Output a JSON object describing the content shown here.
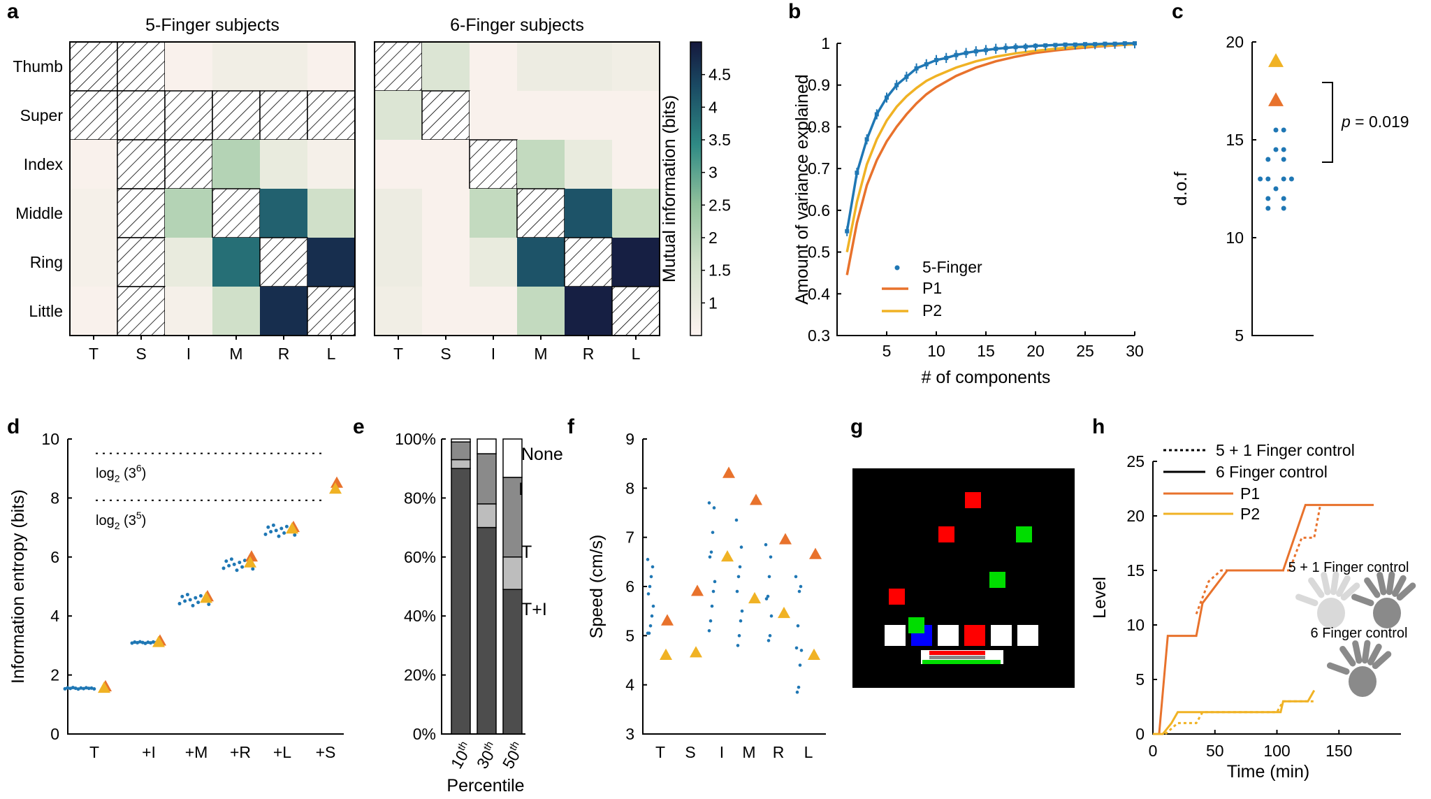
{
  "colors": {
    "blue": "#1f77b4",
    "p1": "#e8722c",
    "p2": "#f0b224",
    "heat_low": "#fcf3f0",
    "heat_mid": "#8fc09b",
    "heat_high": "#15183d",
    "g_bg": "#000000",
    "g_red": "#ff0000",
    "g_green": "#00dd00",
    "g_blue": "#0000ff",
    "g_white": "#ffffff"
  },
  "panels": {
    "a": "a",
    "b": "b",
    "c": "c",
    "d": "d",
    "e": "e",
    "f": "f",
    "g": "g",
    "h": "h"
  },
  "chart_data": [
    {
      "panel": "a",
      "type": "heatmap",
      "titles": [
        "5-Finger subjects",
        "6-Finger subjects"
      ],
      "row_labels": [
        "Thumb",
        "Super",
        "Index",
        "Middle",
        "Ring",
        "Little"
      ],
      "col_labels": [
        "T",
        "S",
        "I",
        "M",
        "R",
        "L"
      ],
      "colorbar": {
        "label": "Mutual information (bits)",
        "ticks": [
          "1",
          "1.5",
          "2",
          "2.5",
          "3",
          "3.5",
          "4",
          "4.5"
        ],
        "range": [
          0.5,
          5.0
        ]
      },
      "matrices": [
        {
          "name": "5-Finger subjects",
          "values": [
            [
              null,
              null,
              0.6,
              0.8,
              0.8,
              0.6
            ],
            [
              null,
              null,
              null,
              null,
              null,
              null
            ],
            [
              0.6,
              null,
              null,
              2.0,
              1.0,
              0.7
            ],
            [
              0.7,
              null,
              2.0,
              null,
              4.0,
              1.6
            ],
            [
              0.7,
              null,
              1.0,
              3.8,
              null,
              4.7
            ],
            [
              0.6,
              null,
              0.7,
              1.6,
              4.7,
              null
            ]
          ]
        },
        {
          "name": "6-Finger subjects",
          "values": [
            [
              null,
              1.3,
              0.6,
              0.9,
              0.9,
              0.8
            ],
            [
              1.3,
              null,
              0.6,
              0.6,
              0.6,
              0.6
            ],
            [
              0.6,
              0.6,
              null,
              1.8,
              1.0,
              0.6
            ],
            [
              0.9,
              0.6,
              1.8,
              null,
              4.2,
              1.7
            ],
            [
              0.9,
              0.6,
              1.0,
              4.2,
              null,
              4.9
            ],
            [
              0.8,
              0.6,
              0.6,
              1.8,
              4.9,
              null
            ]
          ]
        }
      ]
    },
    {
      "panel": "b",
      "type": "line",
      "xlabel": "# of components",
      "ylabel": "Amount of variance explained",
      "xlim": [
        0,
        30
      ],
      "ylim": [
        0.3,
        1.0
      ],
      "xticks": [
        "5",
        "10",
        "15",
        "20",
        "25",
        "30"
      ],
      "yticks": [
        "0.3",
        "0.4",
        "0.5",
        "0.6",
        "0.7",
        "0.8",
        "0.9",
        "1"
      ],
      "legend": [
        "5-Finger",
        "P1",
        "P2"
      ],
      "series": [
        {
          "name": "5-Finger",
          "x": [
            1,
            2,
            3,
            4,
            5,
            6,
            7,
            8,
            9,
            10,
            11,
            12,
            13,
            14,
            15,
            16,
            17,
            18,
            19,
            20,
            21,
            22,
            23,
            24,
            25,
            26,
            27,
            28,
            29,
            30
          ],
          "y": [
            0.55,
            0.69,
            0.77,
            0.83,
            0.87,
            0.9,
            0.92,
            0.94,
            0.95,
            0.96,
            0.965,
            0.972,
            0.977,
            0.981,
            0.984,
            0.987,
            0.989,
            0.991,
            0.992,
            0.994,
            0.995,
            0.996,
            0.997,
            0.997,
            0.998,
            0.998,
            0.999,
            0.999,
            1.0,
            1.0
          ]
        },
        {
          "name": "P1",
          "x": [
            1,
            2,
            3,
            4,
            5,
            6,
            7,
            8,
            9,
            10,
            12,
            14,
            16,
            18,
            20,
            22,
            24,
            26,
            28,
            30
          ],
          "y": [
            0.445,
            0.57,
            0.66,
            0.72,
            0.765,
            0.8,
            0.83,
            0.856,
            0.878,
            0.895,
            0.922,
            0.942,
            0.957,
            0.968,
            0.977,
            0.983,
            0.988,
            0.992,
            0.995,
            0.998
          ]
        },
        {
          "name": "P2",
          "x": [
            1,
            2,
            3,
            4,
            5,
            6,
            7,
            8,
            9,
            10,
            12,
            14,
            16,
            18,
            20,
            22,
            24,
            26,
            28,
            30
          ],
          "y": [
            0.5,
            0.62,
            0.71,
            0.77,
            0.815,
            0.848,
            0.873,
            0.893,
            0.91,
            0.922,
            0.942,
            0.957,
            0.968,
            0.976,
            0.982,
            0.987,
            0.991,
            0.994,
            0.996,
            0.998
          ]
        }
      ]
    },
    {
      "panel": "c",
      "type": "scatter",
      "ylabel": "d.o.f",
      "ylim": [
        5,
        20
      ],
      "yticks": [
        "5",
        "10",
        "15",
        "20"
      ],
      "annotation": "p = 0.019",
      "annotation_p": "p",
      "annotation_rest": " = 0.019",
      "five_finger": [
        {
          "x": 0.0,
          "y": 15.5
        },
        {
          "x": 0.35,
          "y": 15.5
        },
        {
          "x": 0.0,
          "y": 14.5
        },
        {
          "x": 0.35,
          "y": 14.5
        },
        {
          "x": -0.35,
          "y": 14.0
        },
        {
          "x": 0.35,
          "y": 14.0
        },
        {
          "x": -0.7,
          "y": 13.0
        },
        {
          "x": -0.35,
          "y": 13.0
        },
        {
          "x": 0.35,
          "y": 13.0
        },
        {
          "x": 0.7,
          "y": 13.0
        },
        {
          "x": 0.0,
          "y": 12.5
        },
        {
          "x": -0.35,
          "y": 12.0
        },
        {
          "x": 0.35,
          "y": 12.0
        },
        {
          "x": -0.35,
          "y": 11.5
        },
        {
          "x": 0.35,
          "y": 11.5
        }
      ],
      "six_finger": [
        {
          "name": "P1",
          "y": 17
        },
        {
          "name": "P2",
          "y": 19
        }
      ]
    },
    {
      "panel": "d",
      "type": "scatter",
      "ylabel": "Information entropy (bits)",
      "ylim": [
        0,
        10
      ],
      "yticks": [
        "0",
        "2",
        "4",
        "6",
        "8",
        "10"
      ],
      "categories": [
        "T",
        "+I",
        "+M",
        "+R",
        "+L",
        "+S"
      ],
      "reference_lines": [
        {
          "y": 9.51,
          "base": "log",
          "sub": "2",
          "arg": "(3",
          "sup": "6",
          "close": ")"
        },
        {
          "y": 7.92,
          "base": "log",
          "sub": "2",
          "arg": "(3",
          "sup": "5",
          "close": ")"
        }
      ],
      "five_finger_means": [
        1.55,
        3.1,
        4.55,
        5.75,
        6.9
      ],
      "p1": [
        1.6,
        3.15,
        4.65,
        6.0,
        7.0,
        8.5
      ],
      "p2": [
        1.55,
        3.1,
        4.6,
        5.8,
        6.95,
        8.3
      ]
    },
    {
      "panel": "e",
      "type": "bar",
      "stacked": true,
      "xlabel": "Percentile",
      "categories": [
        {
          "base": "10",
          "sup": "th"
        },
        {
          "base": "30",
          "sup": "th"
        },
        {
          "base": "50",
          "sup": "th"
        }
      ],
      "yticks": [
        "0%",
        "20%",
        "40%",
        "60%",
        "80%",
        "100%"
      ],
      "segment_labels": [
        "T+I",
        "T",
        "I",
        "None"
      ],
      "series": [
        {
          "name": "T+I",
          "color": "#4d4d4d",
          "values": [
            90,
            70,
            49
          ]
        },
        {
          "name": "T",
          "color": "#bdbdbd",
          "values": [
            3,
            8,
            11
          ]
        },
        {
          "name": "I",
          "color": "#8a8a8a",
          "values": [
            6,
            17,
            27
          ]
        },
        {
          "name": "None",
          "color": "#ffffff",
          "values": [
            1,
            5,
            13
          ]
        }
      ]
    },
    {
      "panel": "f",
      "type": "scatter",
      "ylabel": "Speed (cm/s)",
      "ylim": [
        3,
        9
      ],
      "yticks": [
        "3",
        "4",
        "5",
        "6",
        "7",
        "8",
        "9"
      ],
      "categories": [
        "T",
        "S",
        "I",
        "M",
        "R",
        "L"
      ],
      "p1": [
        5.3,
        5.9,
        8.3,
        7.75,
        6.95,
        6.65
      ],
      "p2": [
        4.6,
        4.65,
        6.6,
        5.75,
        5.45,
        4.6
      ],
      "five_finger": [
        [
          6.55,
          6.4,
          6.2,
          6.0,
          5.85,
          5.6,
          5.4,
          5.2,
          5.05,
          5.05
        ],
        [],
        [
          7.7,
          7.6,
          7.1,
          6.7,
          6.6,
          6.1,
          5.9,
          5.6,
          5.3,
          5.1
        ],
        [
          7.35,
          6.8,
          6.4,
          6.2,
          5.9,
          5.5,
          5.3,
          5.0,
          4.8
        ],
        [
          6.85,
          6.6,
          6.2,
          5.8,
          5.75,
          5.4,
          5.0,
          4.9
        ],
        [
          6.2,
          6.0,
          5.9,
          5.2,
          4.75,
          4.7,
          4.4,
          3.95,
          3.85
        ]
      ]
    },
    {
      "panel": "h",
      "type": "line",
      "xlabel": "Time (min)",
      "ylabel": "Level",
      "xlim": [
        0,
        200
      ],
      "ylim": [
        0,
        25
      ],
      "xticks": [
        "0",
        "50",
        "100",
        "150"
      ],
      "yticks": [
        "0",
        "5",
        "10",
        "15",
        "20",
        "25"
      ],
      "legend": [
        "5 + 1 Finger control",
        "6 Finger control",
        "P1",
        "P2"
      ],
      "hand_labels": [
        "5 + 1 Finger control",
        "6 Finger control"
      ],
      "series": [
        {
          "name": "P1 6 Finger control",
          "x": [
            0,
            5,
            12,
            35,
            40,
            60,
            100,
            105,
            123,
            130,
            178
          ],
          "y": [
            0,
            0,
            9,
            9,
            12,
            15,
            15,
            15,
            21,
            21,
            21
          ]
        },
        {
          "name": "P1 5 + 1 Finger control",
          "x": [
            35,
            45,
            55,
            60,
            100,
            110,
            120,
            125,
            130,
            135
          ],
          "y": [
            11,
            14,
            15,
            15,
            15,
            15,
            18,
            18,
            18,
            21
          ]
        },
        {
          "name": "P2 6 Finger control",
          "x": [
            0,
            8,
            15,
            20,
            25,
            100,
            103,
            105,
            125,
            130
          ],
          "y": [
            0,
            0,
            1,
            2,
            2,
            2,
            2,
            3,
            3,
            4
          ]
        },
        {
          "name": "P2 5 + 1 Finger control",
          "x": [
            10,
            20,
            25,
            35,
            40,
            100,
            105,
            130
          ],
          "y": [
            0,
            1,
            1,
            1,
            2,
            2,
            3,
            3
          ]
        }
      ]
    }
  ],
  "game": {
    "squares": [
      {
        "color": "red",
        "row": 0,
        "col": 4
      },
      {
        "color": "red",
        "row": 1,
        "col": 3
      },
      {
        "color": "green",
        "row": 1,
        "col": 6
      },
      {
        "color": "green",
        "row": 2,
        "col": 5
      },
      {
        "color": "red",
        "row": 3,
        "col": 1
      },
      {
        "color": "green",
        "row": 4,
        "col": 2
      }
    ],
    "keys": [
      "white",
      "blue",
      "white",
      "red",
      "white",
      "white"
    ]
  }
}
